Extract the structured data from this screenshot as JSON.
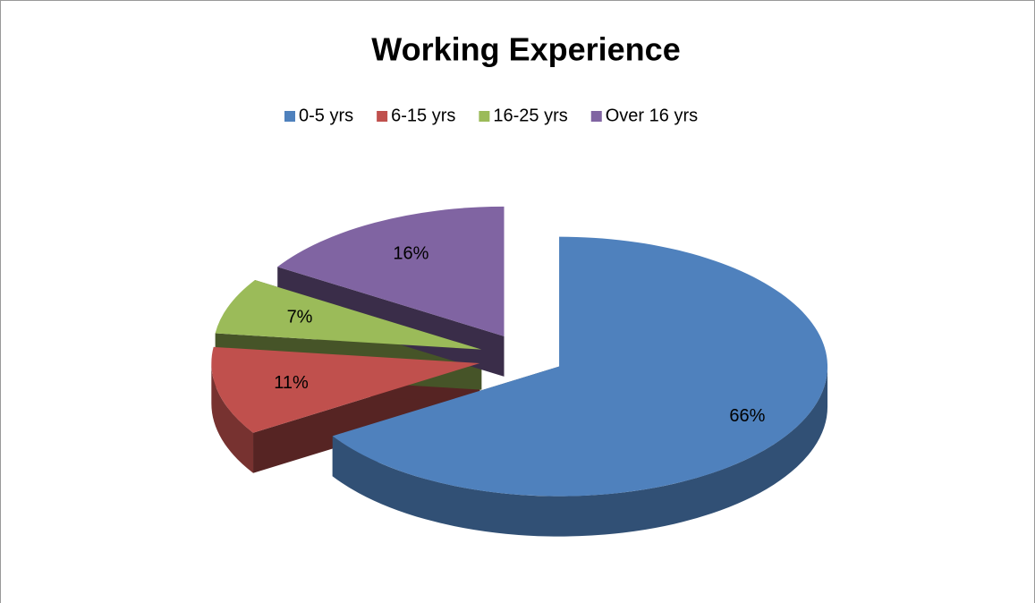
{
  "chart_data": {
    "type": "pie",
    "title": "Working Experience",
    "categories": [
      "0-5 yrs",
      "6-15 yrs",
      "16-25 yrs",
      "Over 16 yrs"
    ],
    "values": [
      66,
      11,
      7,
      16
    ],
    "value_labels": [
      "66%",
      "11%",
      "7%",
      "16%"
    ],
    "colors": [
      "#4f81bd",
      "#c0504d",
      "#9bbb59",
      "#8064a2"
    ],
    "legend": "top"
  }
}
